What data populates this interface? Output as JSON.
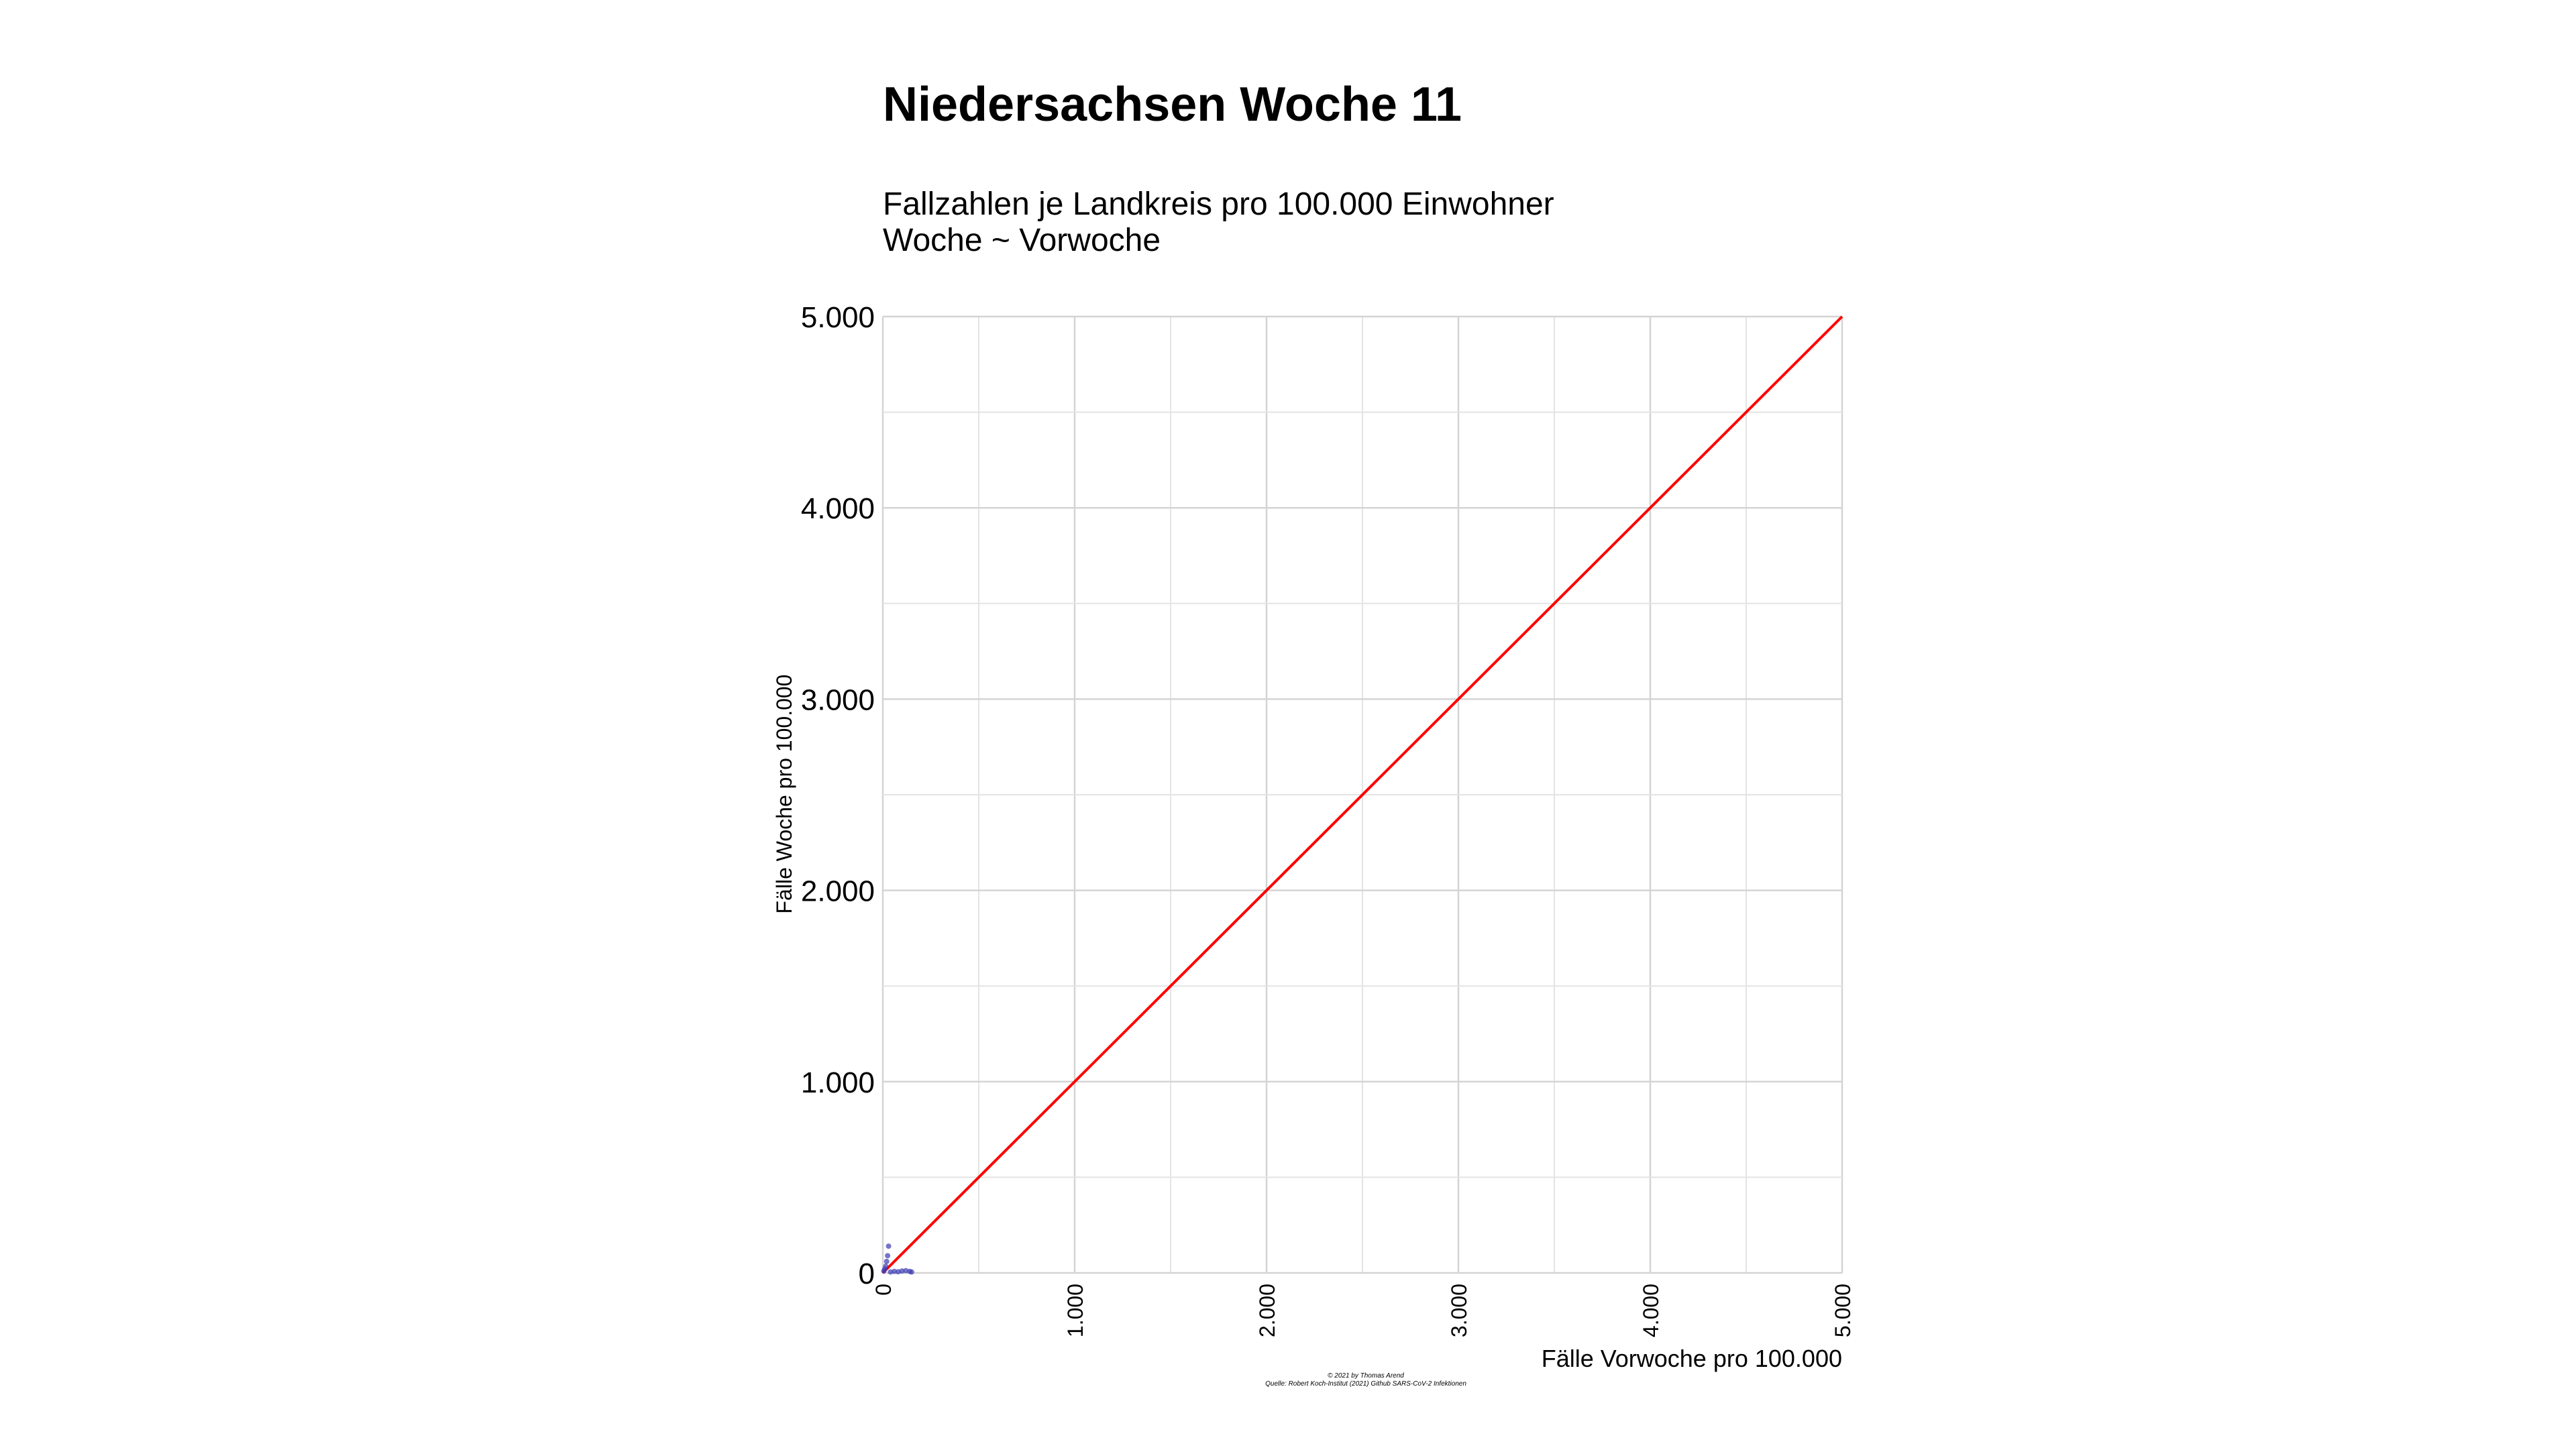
{
  "chart_data": {
    "type": "scatter",
    "title": "Niedersachsen Woche 11",
    "subtitle_lines": [
      "Fallzahlen je Landkreis pro 100.000 Einwohner",
      "Woche ~ Vorwoche"
    ],
    "xlabel": "Fälle Vorwoche pro 100.000",
    "ylabel": "Fälle Woche pro 100.000",
    "xlim": [
      0,
      5000
    ],
    "ylim": [
      0,
      5000
    ],
    "x_ticks": [
      0,
      1000,
      2000,
      3000,
      4000,
      5000
    ],
    "y_ticks": [
      0,
      1000,
      2000,
      3000,
      4000,
      5000
    ],
    "x_tick_labels": [
      "0",
      "1.000",
      "2.000",
      "3.000",
      "4.000",
      "5.000"
    ],
    "y_tick_labels": [
      "0",
      "1.000",
      "2.000",
      "3.000",
      "4.000",
      "5.000"
    ],
    "minor_grid_step": 500,
    "grid": true,
    "reference_line": {
      "x": [
        0,
        5000
      ],
      "y": [
        0,
        5000
      ],
      "color": "#ff0000"
    },
    "points": [
      {
        "x": 5,
        "y": 10
      },
      {
        "x": 10,
        "y": 20
      },
      {
        "x": 15,
        "y": 35
      },
      {
        "x": 20,
        "y": 60
      },
      {
        "x": 25,
        "y": 90
      },
      {
        "x": 30,
        "y": 140
      },
      {
        "x": 40,
        "y": 5
      },
      {
        "x": 60,
        "y": 8
      },
      {
        "x": 80,
        "y": 6
      },
      {
        "x": 100,
        "y": 10
      },
      {
        "x": 120,
        "y": 12
      },
      {
        "x": 140,
        "y": 8
      },
      {
        "x": 150,
        "y": 5
      }
    ],
    "point_color": "#3b3bb3",
    "caption_lines": [
      "© 2021 by Thomas Arend",
      "Quelle: Robert Koch-Institut (2021) Github SARS-CoV-2 Infektionen"
    ]
  }
}
